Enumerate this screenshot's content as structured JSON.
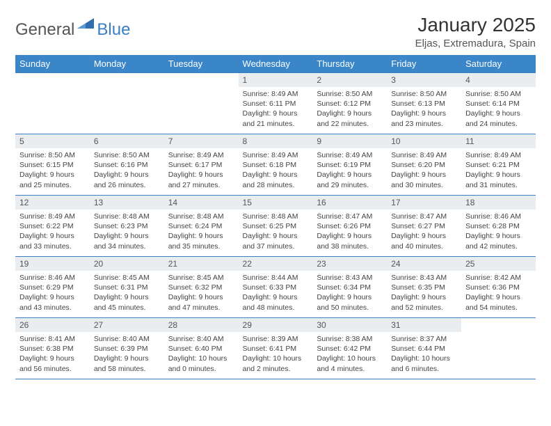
{
  "brand": {
    "part1": "General",
    "part2": "Blue",
    "accent_color": "#2f6fb0"
  },
  "header": {
    "month_title": "January 2025",
    "location": "Eljas, Extremadura, Spain"
  },
  "colors": {
    "header_bg": "#3a86c8",
    "header_text": "#ffffff",
    "daynum_bg": "#e9edf0",
    "border": "#3a7fc4",
    "body_text": "#444444"
  },
  "weekdays": [
    "Sunday",
    "Monday",
    "Tuesday",
    "Wednesday",
    "Thursday",
    "Friday",
    "Saturday"
  ],
  "weeks": [
    [
      null,
      null,
      null,
      {
        "day": "1",
        "sunrise": "8:49 AM",
        "sunset": "6:11 PM",
        "daylight": "9 hours and 21 minutes."
      },
      {
        "day": "2",
        "sunrise": "8:50 AM",
        "sunset": "6:12 PM",
        "daylight": "9 hours and 22 minutes."
      },
      {
        "day": "3",
        "sunrise": "8:50 AM",
        "sunset": "6:13 PM",
        "daylight": "9 hours and 23 minutes."
      },
      {
        "day": "4",
        "sunrise": "8:50 AM",
        "sunset": "6:14 PM",
        "daylight": "9 hours and 24 minutes."
      }
    ],
    [
      {
        "day": "5",
        "sunrise": "8:50 AM",
        "sunset": "6:15 PM",
        "daylight": "9 hours and 25 minutes."
      },
      {
        "day": "6",
        "sunrise": "8:50 AM",
        "sunset": "6:16 PM",
        "daylight": "9 hours and 26 minutes."
      },
      {
        "day": "7",
        "sunrise": "8:49 AM",
        "sunset": "6:17 PM",
        "daylight": "9 hours and 27 minutes."
      },
      {
        "day": "8",
        "sunrise": "8:49 AM",
        "sunset": "6:18 PM",
        "daylight": "9 hours and 28 minutes."
      },
      {
        "day": "9",
        "sunrise": "8:49 AM",
        "sunset": "6:19 PM",
        "daylight": "9 hours and 29 minutes."
      },
      {
        "day": "10",
        "sunrise": "8:49 AM",
        "sunset": "6:20 PM",
        "daylight": "9 hours and 30 minutes."
      },
      {
        "day": "11",
        "sunrise": "8:49 AM",
        "sunset": "6:21 PM",
        "daylight": "9 hours and 31 minutes."
      }
    ],
    [
      {
        "day": "12",
        "sunrise": "8:49 AM",
        "sunset": "6:22 PM",
        "daylight": "9 hours and 33 minutes."
      },
      {
        "day": "13",
        "sunrise": "8:48 AM",
        "sunset": "6:23 PM",
        "daylight": "9 hours and 34 minutes."
      },
      {
        "day": "14",
        "sunrise": "8:48 AM",
        "sunset": "6:24 PM",
        "daylight": "9 hours and 35 minutes."
      },
      {
        "day": "15",
        "sunrise": "8:48 AM",
        "sunset": "6:25 PM",
        "daylight": "9 hours and 37 minutes."
      },
      {
        "day": "16",
        "sunrise": "8:47 AM",
        "sunset": "6:26 PM",
        "daylight": "9 hours and 38 minutes."
      },
      {
        "day": "17",
        "sunrise": "8:47 AM",
        "sunset": "6:27 PM",
        "daylight": "9 hours and 40 minutes."
      },
      {
        "day": "18",
        "sunrise": "8:46 AM",
        "sunset": "6:28 PM",
        "daylight": "9 hours and 42 minutes."
      }
    ],
    [
      {
        "day": "19",
        "sunrise": "8:46 AM",
        "sunset": "6:29 PM",
        "daylight": "9 hours and 43 minutes."
      },
      {
        "day": "20",
        "sunrise": "8:45 AM",
        "sunset": "6:31 PM",
        "daylight": "9 hours and 45 minutes."
      },
      {
        "day": "21",
        "sunrise": "8:45 AM",
        "sunset": "6:32 PM",
        "daylight": "9 hours and 47 minutes."
      },
      {
        "day": "22",
        "sunrise": "8:44 AM",
        "sunset": "6:33 PM",
        "daylight": "9 hours and 48 minutes."
      },
      {
        "day": "23",
        "sunrise": "8:43 AM",
        "sunset": "6:34 PM",
        "daylight": "9 hours and 50 minutes."
      },
      {
        "day": "24",
        "sunrise": "8:43 AM",
        "sunset": "6:35 PM",
        "daylight": "9 hours and 52 minutes."
      },
      {
        "day": "25",
        "sunrise": "8:42 AM",
        "sunset": "6:36 PM",
        "daylight": "9 hours and 54 minutes."
      }
    ],
    [
      {
        "day": "26",
        "sunrise": "8:41 AM",
        "sunset": "6:38 PM",
        "daylight": "9 hours and 56 minutes."
      },
      {
        "day": "27",
        "sunrise": "8:40 AM",
        "sunset": "6:39 PM",
        "daylight": "9 hours and 58 minutes."
      },
      {
        "day": "28",
        "sunrise": "8:40 AM",
        "sunset": "6:40 PM",
        "daylight": "10 hours and 0 minutes."
      },
      {
        "day": "29",
        "sunrise": "8:39 AM",
        "sunset": "6:41 PM",
        "daylight": "10 hours and 2 minutes."
      },
      {
        "day": "30",
        "sunrise": "8:38 AM",
        "sunset": "6:42 PM",
        "daylight": "10 hours and 4 minutes."
      },
      {
        "day": "31",
        "sunrise": "8:37 AM",
        "sunset": "6:44 PM",
        "daylight": "10 hours and 6 minutes."
      },
      null
    ]
  ],
  "labels": {
    "sunrise": "Sunrise:",
    "sunset": "Sunset:",
    "daylight": "Daylight:"
  }
}
